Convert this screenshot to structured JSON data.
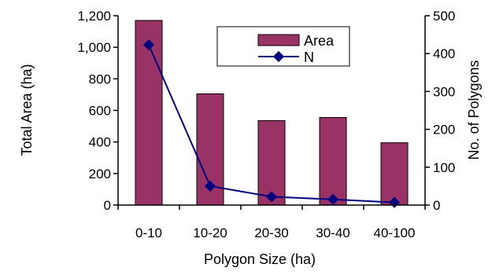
{
  "chart_data": {
    "type": "bar+line",
    "categories": [
      "0-10",
      "10-20",
      "20-30",
      "30-40",
      "40-100"
    ],
    "series": [
      {
        "name": "Area",
        "type": "bar",
        "axis": "left",
        "color": "#993366",
        "values": [
          1170,
          705,
          535,
          555,
          395
        ]
      },
      {
        "name": "N",
        "type": "line",
        "axis": "right",
        "color": "#000080",
        "values": [
          423,
          50,
          22,
          15,
          7
        ]
      }
    ],
    "xlabel": "Polygon Size (ha)",
    "ylabel": "Total Area (ha)",
    "y2label": "No. of Polygons",
    "ylim": [
      0,
      1200
    ],
    "y2lim": [
      0,
      500
    ],
    "yticks": [
      "0",
      "200",
      "400",
      "600",
      "800",
      "1,000",
      "1,200"
    ],
    "y2ticks": [
      "0",
      "100",
      "200",
      "300",
      "400",
      "500"
    ],
    "grid": false,
    "legend": "top-right-inside"
  }
}
